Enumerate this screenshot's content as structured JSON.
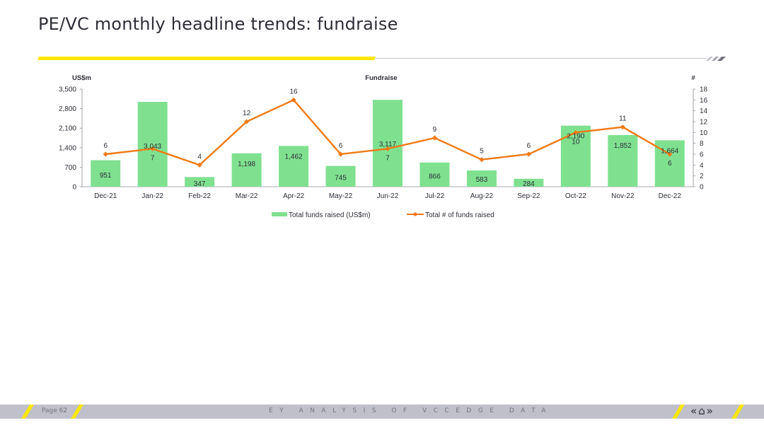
{
  "header": {
    "title": "PE/VC monthly headline trends: fundraise"
  },
  "chart_data": {
    "type": "bar",
    "title": "Fundraise",
    "y_left_label": "US$m",
    "y_right_label": "#",
    "categories": [
      "Dec-21",
      "Jan-22",
      "Feb-22",
      "Mar-22",
      "Apr-22",
      "May-22",
      "Jun-22",
      "Jul-22",
      "Aug-22",
      "Sep-22",
      "Oct-22",
      "Nov-22",
      "Dec-22"
    ],
    "bar_series": {
      "name": "Total funds raised (US$m)",
      "values": [
        951,
        3043,
        347,
        1198,
        1462,
        745,
        3117,
        866,
        583,
        284,
        2190,
        1852,
        1664
      ],
      "labels": [
        "951",
        "3,043",
        "347",
        "1,198",
        "1,462",
        "745",
        "3,117",
        "866",
        "583",
        "284",
        "2,190",
        "1,852",
        "1,664"
      ],
      "color": "#7fe18f"
    },
    "line_series": {
      "name": "Total # of funds raised",
      "values": [
        6,
        7,
        4,
        12,
        16,
        6,
        7,
        9,
        5,
        6,
        10,
        11,
        6
      ],
      "labels": [
        "6",
        "7",
        "4",
        "12",
        "16",
        "6",
        "7",
        "9",
        "5",
        "6",
        "10",
        "11",
        "6"
      ],
      "color": "#f07a16"
    },
    "y_left": {
      "min": 0,
      "max": 3500,
      "ticks": [
        "0",
        "700",
        "1,400",
        "2,100",
        "2,800",
        "3,500"
      ]
    },
    "y_right": {
      "min": 0,
      "max": 18,
      "ticks": [
        "0",
        "2",
        "4",
        "6",
        "8",
        "10",
        "12",
        "14",
        "16",
        "18"
      ]
    },
    "legend_position": "bottom",
    "grid": false
  },
  "footer": {
    "page": "Page 62",
    "tagline": "EY ANALYSIS OF VCCEDGE DATA",
    "nav_icons": [
      "prev-icon",
      "home-icon",
      "next-icon"
    ],
    "nav_glyphs": "« ⌂ »"
  },
  "colors": {
    "accent": "#ffe600",
    "bar": "#7fe18f",
    "line": "#f07a16",
    "footer": "#bfc0ca"
  }
}
